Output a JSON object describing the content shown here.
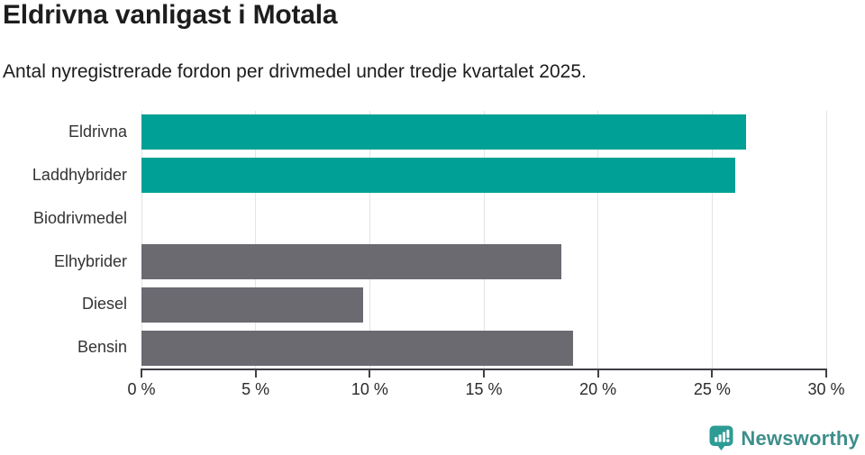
{
  "header": {
    "title": "Eldrivna vanligast i Motala",
    "subtitle": "Antal nyregistrerade fordon per drivmedel under tredje kvartalet 2025."
  },
  "chart_data": {
    "type": "bar",
    "orientation": "horizontal",
    "title": "Eldrivna vanligast i Motala",
    "subtitle": "Antal nyregistrerade fordon per drivmedel under tredje kvartalet 2025.",
    "categories": [
      "Eldrivna",
      "Laddhybrider",
      "Biodrivmedel",
      "Elhybrider",
      "Diesel",
      "Bensin"
    ],
    "values": [
      26.5,
      26.0,
      0,
      18.4,
      9.7,
      18.9
    ],
    "unit": "%",
    "bar_colors": [
      "#00a096",
      "#00a096",
      "#6b6a71",
      "#6b6a71",
      "#6b6a71",
      "#6b6a71"
    ],
    "xlim": [
      0,
      30
    ],
    "xticks": [
      0,
      5,
      10,
      15,
      20,
      25,
      30
    ],
    "xtick_labels": [
      "0 %",
      "5 %",
      "10 %",
      "15 %",
      "20 %",
      "25 %",
      "30 %"
    ],
    "grid": "vertical-gridlines-at-xticks",
    "legend": "none",
    "style": {
      "highlight_color": "#00a096",
      "default_bar_color": "#6b6a71",
      "grid_color": "#e4e4e4",
      "axis_color": "#3f3f44",
      "text_color": "#1d1d1d"
    }
  },
  "footer": {
    "brand": "Newsworthy",
    "brand_icon": "newsworthy-speech-bubble-bar-chart-icon",
    "brand_color": "#3e8e8b",
    "brand_icon_color": "#2d9c95"
  }
}
